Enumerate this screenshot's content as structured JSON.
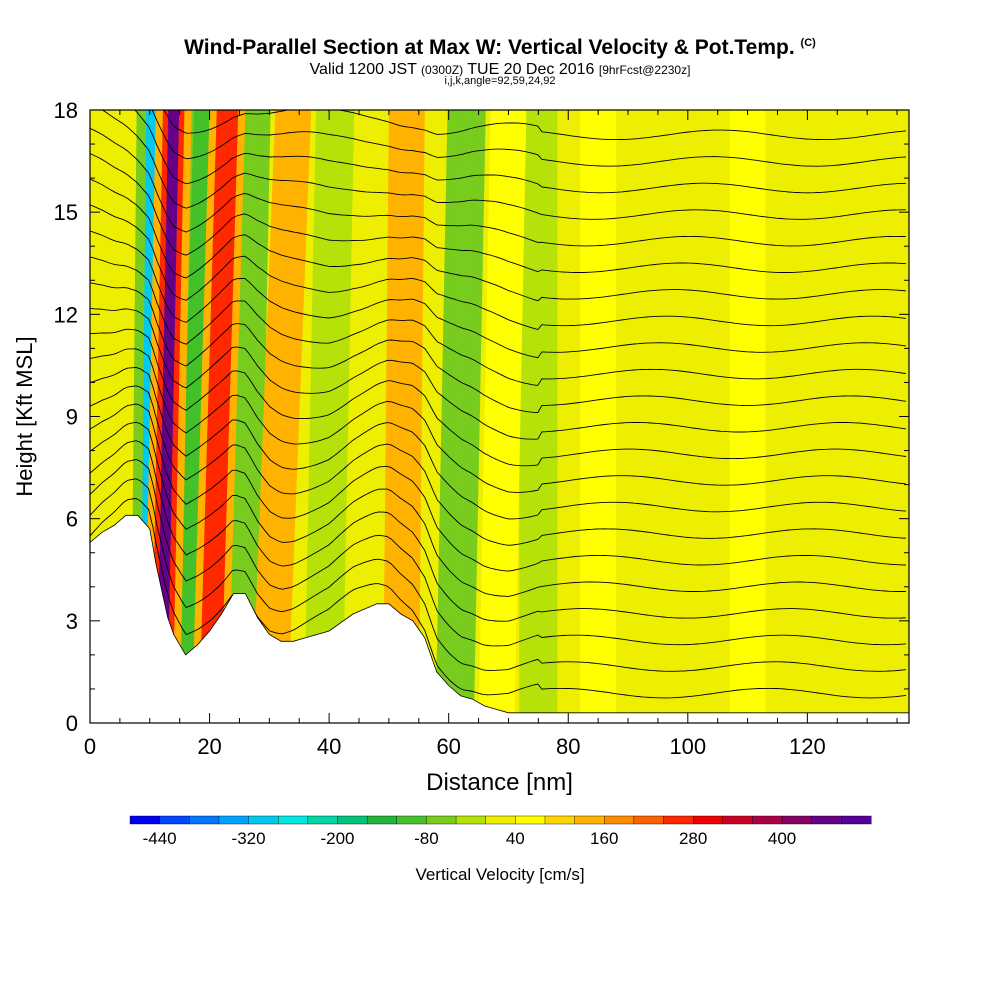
{
  "header": {
    "title": "Wind-Parallel Section at Max W: Vertical Velocity & Pot.Temp.",
    "copyright": "(C)",
    "valid_prefix": "Valid 1200 JST",
    "valid_z": "(0300Z)",
    "valid_date": "TUE 20 Dec 2016",
    "forecast": "[9hrFcst@2230z]",
    "indices": "i,j,k,angle=92,59,24,92"
  },
  "chart_data": {
    "type": "heatmap",
    "xlabel": "Distance [nm]",
    "ylabel": "Height [Kft MSL]",
    "xlim": [
      0,
      137
    ],
    "ylim": [
      0,
      18
    ],
    "xticks": [
      0,
      20,
      40,
      60,
      80,
      100,
      120
    ],
    "yticks": [
      0,
      3,
      6,
      9,
      12,
      15,
      18
    ],
    "colorbar": {
      "label": "Vertical Velocity [cm/s]",
      "tick_labels": [
        -440,
        -320,
        -200,
        -80,
        40,
        160,
        280,
        400
      ],
      "range": [
        -480,
        520
      ],
      "colors": [
        "#0000ee",
        "#0044ff",
        "#0077ff",
        "#00a2ff",
        "#00cbee",
        "#00e8e0",
        "#00d8a8",
        "#00c47c",
        "#22b43c",
        "#44c028",
        "#77cc1e",
        "#b6e20a",
        "#eeee00",
        "#ffff00",
        "#ffd400",
        "#ffb200",
        "#ff8c00",
        "#ff6000",
        "#ff2800",
        "#ee0000",
        "#cc0024",
        "#aa0044",
        "#880066",
        "#660088",
        "#550099"
      ]
    },
    "terrain_profile": {
      "x": [
        0,
        2,
        4,
        6,
        8,
        10,
        11,
        12,
        13,
        14,
        15,
        16,
        18,
        20,
        22,
        24,
        26,
        28,
        30,
        32,
        34,
        36,
        40,
        44,
        48,
        50,
        52,
        54,
        56,
        58,
        60,
        62,
        64,
        66,
        68,
        70,
        75,
        80,
        90,
        100,
        110,
        115,
        116,
        118,
        122,
        124,
        126,
        130,
        137
      ],
      "height": [
        5.3,
        5.6,
        5.8,
        6.1,
        6.1,
        5.7,
        4.7,
        3.9,
        3.1,
        2.6,
        2.3,
        2.0,
        2.3,
        2.7,
        3.2,
        3.8,
        3.8,
        3.1,
        2.6,
        2.4,
        2.4,
        2.5,
        2.7,
        3.2,
        3.5,
        3.5,
        3.2,
        3.0,
        2.5,
        1.5,
        1.1,
        0.8,
        0.7,
        0.5,
        0.4,
        0.3,
        0.3,
        0.3,
        0.3,
        0.3,
        0.3,
        0.3,
        0.3,
        0.3,
        0.3,
        0.3,
        0.3,
        0.3,
        0.3
      ]
    },
    "updraft_bands": [
      {
        "x_top": 14,
        "x_bottom": 12,
        "w": 440
      },
      {
        "x_top": 23,
        "x_bottom": 20,
        "w": 200
      },
      {
        "x_top": 34,
        "x_bottom": 30,
        "w": 120
      },
      {
        "x_top": 53,
        "x_bottom": 52,
        "w": 120
      },
      {
        "x_top": 70,
        "x_bottom": 68,
        "w": 40
      },
      {
        "x_top": 85,
        "x_bottom": 85,
        "w": 40
      },
      {
        "x_top": 110,
        "x_bottom": 110,
        "w": 40
      }
    ],
    "downdraft_bands": [
      {
        "x_top": 11,
        "x_bottom": 10,
        "w": -320
      },
      {
        "x_top": 19,
        "x_bottom": 16,
        "w": -120
      },
      {
        "x_top": 27,
        "x_bottom": 25,
        "w": -80
      },
      {
        "x_top": 41,
        "x_bottom": 39,
        "w": -40
      },
      {
        "x_top": 63,
        "x_bottom": 61,
        "w": -80
      },
      {
        "x_top": 75,
        "x_bottom": 75,
        "w": -40
      }
    ],
    "isentrope_count": 22
  }
}
